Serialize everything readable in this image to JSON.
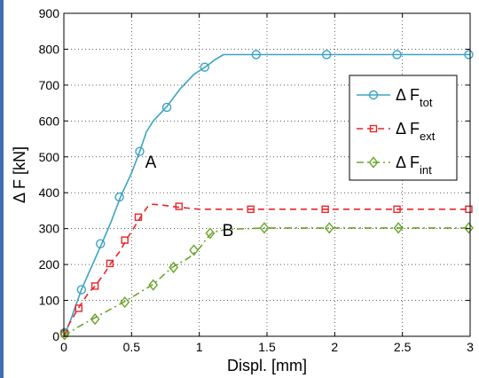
{
  "chart_data": {
    "type": "line",
    "title": "",
    "xlabel": "Displ. [mm]",
    "ylabel": "Δ F [kN]",
    "xlim": [
      0,
      3
    ],
    "ylim": [
      0,
      900
    ],
    "xticks": [
      0,
      0.5,
      1,
      1.5,
      2,
      2.5,
      3
    ],
    "xtick_labels": [
      "0",
      "0.5",
      "1",
      "1.5",
      "2",
      "2.5",
      "3"
    ],
    "yticks": [
      0,
      100,
      200,
      300,
      400,
      500,
      600,
      700,
      800,
      900
    ],
    "ytick_labels": [
      "0",
      "100",
      "200",
      "300",
      "400",
      "500",
      "600",
      "700",
      "800",
      "900"
    ],
    "grid": true,
    "legend_position": "upper-right",
    "series": [
      {
        "name": "Δ F",
        "subscript": "tot",
        "color": "#3ba3c5",
        "line_style": "solid",
        "marker": "circle",
        "curve": [
          [
            0,
            0
          ],
          [
            0.05,
            45
          ],
          [
            0.13,
            130
          ],
          [
            0.2,
            190
          ],
          [
            0.28,
            258
          ],
          [
            0.35,
            320
          ],
          [
            0.42,
            390
          ],
          [
            0.5,
            455
          ],
          [
            0.56,
            515
          ],
          [
            0.61,
            570
          ],
          [
            0.66,
            600
          ],
          [
            0.76,
            640
          ],
          [
            0.86,
            690
          ],
          [
            0.96,
            730
          ],
          [
            1.05,
            752
          ],
          [
            1.12,
            772
          ],
          [
            1.18,
            785
          ],
          [
            3.0,
            785
          ]
        ],
        "markers": [
          [
            0.005,
            10
          ],
          [
            0.13,
            130
          ],
          [
            0.27,
            258
          ],
          [
            0.41,
            388
          ],
          [
            0.56,
            515
          ],
          [
            0.76,
            638
          ],
          [
            1.04,
            750
          ],
          [
            1.42,
            785
          ],
          [
            1.94,
            785
          ],
          [
            2.46,
            785
          ],
          [
            2.99,
            785
          ]
        ]
      },
      {
        "name": "Δ F",
        "subscript": "ext",
        "color": "#e8262a",
        "line_style": "dashed",
        "marker": "square",
        "curve": [
          [
            0,
            0
          ],
          [
            0.04,
            35
          ],
          [
            0.11,
            80
          ],
          [
            0.18,
            120
          ],
          [
            0.23,
            140
          ],
          [
            0.29,
            170
          ],
          [
            0.35,
            205
          ],
          [
            0.41,
            235
          ],
          [
            0.46,
            268
          ],
          [
            0.53,
            310
          ],
          [
            0.58,
            340
          ],
          [
            0.62,
            362
          ],
          [
            0.65,
            368
          ],
          [
            0.72,
            366
          ],
          [
            0.84,
            360
          ],
          [
            1.0,
            354
          ],
          [
            1.4,
            354
          ],
          [
            3.0,
            354
          ]
        ],
        "markers": [
          [
            0.005,
            8
          ],
          [
            0.11,
            78
          ],
          [
            0.23,
            140
          ],
          [
            0.34,
            203
          ],
          [
            0.45,
            268
          ],
          [
            0.55,
            332
          ],
          [
            0.85,
            362
          ],
          [
            1.38,
            354
          ],
          [
            1.93,
            354
          ],
          [
            2.46,
            354
          ],
          [
            2.99,
            354
          ]
        ]
      },
      {
        "name": "Δ F",
        "subscript": "int",
        "color": "#6aa52a",
        "line_style": "dashdot",
        "marker": "diamond",
        "curve": [
          [
            0,
            0
          ],
          [
            0.1,
            25
          ],
          [
            0.22,
            50
          ],
          [
            0.44,
            95
          ],
          [
            0.66,
            145
          ],
          [
            0.8,
            192
          ],
          [
            0.92,
            218
          ],
          [
            1.0,
            245
          ],
          [
            1.06,
            275
          ],
          [
            1.1,
            290
          ],
          [
            1.2,
            298
          ],
          [
            1.5,
            302
          ],
          [
            3.0,
            302
          ]
        ],
        "markers": [
          [
            0.005,
            5
          ],
          [
            0.23,
            48
          ],
          [
            0.45,
            95
          ],
          [
            0.66,
            143
          ],
          [
            0.81,
            192
          ],
          [
            0.96,
            240
          ],
          [
            1.08,
            287
          ],
          [
            1.48,
            302
          ],
          [
            1.96,
            302
          ],
          [
            2.47,
            302
          ],
          [
            2.99,
            302
          ]
        ]
      }
    ],
    "annotations": [
      {
        "text": "A",
        "x": 0.6,
        "y": 470
      },
      {
        "text": "B",
        "x": 1.17,
        "y": 280
      }
    ]
  }
}
